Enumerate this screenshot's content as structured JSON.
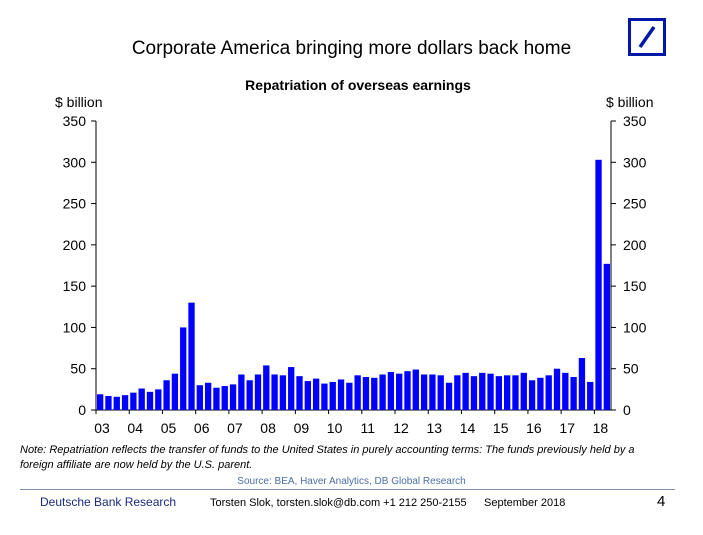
{
  "slide": {
    "title": "Corporate America bringing more dollars back home",
    "page_number": "4"
  },
  "logo": {
    "name": "deutsche-bank-logo",
    "color": "#0018a8"
  },
  "chart_data": {
    "type": "bar",
    "title": "Repatriation of overseas earnings",
    "ylabel_left": "$ billion",
    "ylabel_right": "$ billion",
    "ylim": [
      0,
      350
    ],
    "yticks": [
      0,
      50,
      100,
      150,
      200,
      250,
      300,
      350
    ],
    "xtick_labels": [
      "03",
      "04",
      "05",
      "06",
      "07",
      "08",
      "09",
      "10",
      "11",
      "12",
      "13",
      "14",
      "15",
      "16",
      "17",
      "18"
    ],
    "bar_color": "#0000ff",
    "frequency": "quarterly",
    "start": "2003-Q1",
    "end": "2018-Q2",
    "values": [
      19,
      17,
      16,
      18,
      21,
      26,
      22,
      25,
      36,
      44,
      100,
      130,
      30,
      33,
      27,
      29,
      31,
      43,
      36,
      43,
      54,
      43,
      42,
      52,
      41,
      35,
      38,
      32,
      34,
      37,
      33,
      42,
      40,
      39,
      43,
      46,
      44,
      47,
      49,
      43,
      43,
      42,
      33,
      42,
      45,
      41,
      45,
      44,
      41,
      42,
      42,
      45,
      36,
      39,
      42,
      50,
      45,
      40,
      63,
      34,
      303,
      177
    ],
    "grid": false
  },
  "note": "Note: Repatriation reflects the transfer of funds to the United States in purely accounting terms: The funds previously held by a foreign affiliate are now held by the U.S. parent.",
  "source": "Source: BEA,  Haver Analytics, DB Global Research",
  "footer": {
    "brand": "Deutsche Bank Research",
    "author": "Torsten Slok, torsten.slok@db.com  +1 212 250-2155",
    "date": "September 2018"
  }
}
